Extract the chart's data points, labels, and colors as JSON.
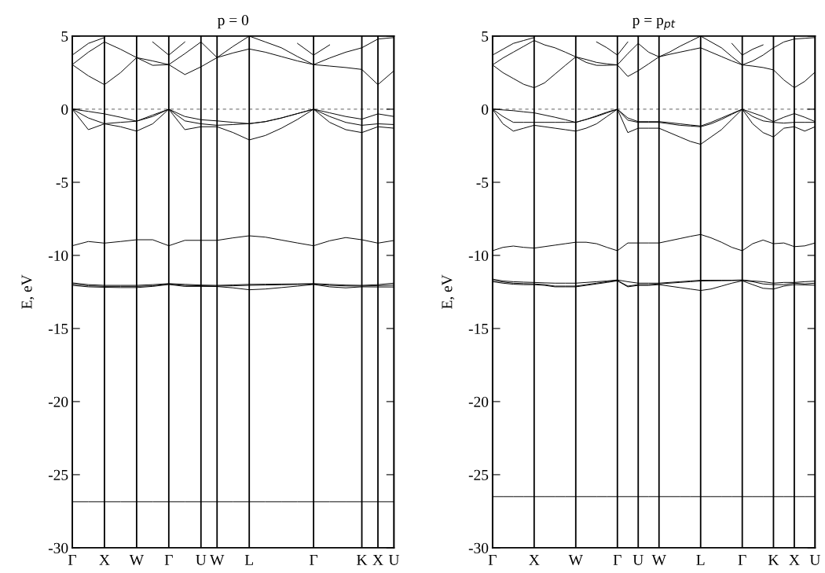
{
  "chart_data": [
    {
      "type": "line",
      "title": "p = 0",
      "ylabel": "E, eV",
      "categories": [
        "Γ",
        null,
        "X",
        null,
        "W",
        null,
        "Γ",
        null,
        "U",
        "W",
        null,
        "L",
        null,
        null,
        null,
        "Γ",
        null,
        null,
        "K",
        "X",
        "U"
      ],
      "ylim": [
        -30,
        5
      ],
      "yticks": [
        -30,
        -25,
        -20,
        -15,
        -10,
        -5,
        0,
        5
      ],
      "grid": "x",
      "ref_lines": [
        {
          "axis": "y",
          "value": 0,
          "color": "#808080",
          "line_style": "dashed"
        }
      ],
      "series": [
        {
          "color": "#000000",
          "values": [
            -26.85,
            -26.85,
            -26.85,
            -26.85,
            -26.85,
            -26.85,
            -26.85,
            -26.85,
            -26.85,
            -26.85,
            -26.85,
            -26.85,
            -26.85,
            -26.85,
            -26.85,
            -26.85,
            -26.85,
            -26.85,
            -26.85,
            -26.85,
            -26.85
          ]
        },
        {
          "color": "#000000",
          "values": [
            -11.88,
            -12.0,
            -12.05,
            -12.05,
            -12.05,
            -12.0,
            -11.93,
            -11.98,
            -12.03,
            -12.05,
            -12.02,
            -11.98,
            -11.97,
            -11.96,
            -11.95,
            -11.93,
            -11.98,
            -12.03,
            -12.05,
            -12.0,
            -11.9
          ]
        },
        {
          "color": "#000000",
          "values": [
            -11.96,
            -12.08,
            -12.12,
            -12.12,
            -12.12,
            -12.08,
            -11.96,
            -12.06,
            -12.08,
            -12.1,
            -12.08,
            -12.05,
            -12.03,
            -12.01,
            -11.99,
            -11.96,
            -12.05,
            -12.09,
            -12.1,
            -12.07,
            -12.03
          ]
        },
        {
          "color": "#000000",
          "values": [
            -12.05,
            -12.15,
            -12.18,
            -12.2,
            -12.2,
            -12.12,
            -11.99,
            -12.12,
            -12.12,
            -12.13,
            -12.22,
            -12.35,
            -12.3,
            -12.2,
            -12.1,
            -11.99,
            -12.15,
            -12.22,
            -12.15,
            -12.16,
            -12.16
          ]
        },
        {
          "color": "#000000",
          "values": [
            -9.34,
            -9.05,
            -9.16,
            -9.05,
            -8.93,
            -8.93,
            -9.34,
            -8.97,
            -8.97,
            -8.97,
            -8.8,
            -8.66,
            -8.75,
            -8.95,
            -9.15,
            -9.34,
            -9.0,
            -8.78,
            -8.93,
            -9.16,
            -8.98
          ]
        },
        {
          "color": "#000000",
          "values": [
            0,
            -0.15,
            -0.32,
            -0.55,
            -0.82,
            -0.4,
            0,
            -0.5,
            -0.72,
            -0.8,
            -0.9,
            -0.99,
            -0.85,
            -0.6,
            -0.3,
            0,
            -0.25,
            -0.5,
            -0.68,
            -0.32,
            -0.5
          ]
        },
        {
          "color": "#000000",
          "values": [
            0,
            -0.6,
            -0.99,
            -0.9,
            -0.82,
            -0.5,
            0,
            -0.8,
            -1.0,
            -1.1,
            -1.05,
            -0.99,
            -0.85,
            -0.6,
            -0.3,
            0,
            -0.5,
            -0.9,
            -1.1,
            -1.0,
            -1.05
          ]
        },
        {
          "color": "#000000",
          "values": [
            0,
            -1.4,
            -1.0,
            -1.2,
            -1.5,
            -1.0,
            0,
            -1.4,
            -1.2,
            -1.2,
            -1.6,
            -2.1,
            -1.8,
            -1.3,
            -0.7,
            0,
            -0.9,
            -1.4,
            -1.6,
            -1.2,
            -1.3
          ]
        },
        {
          "color": "#000000",
          "values": [
            3.05,
            2.28,
            1.68,
            2.5,
            3.53,
            3.0,
            3.05,
            2.37,
            2.9,
            3.53,
            3.85,
            4.12,
            3.9,
            3.6,
            3.3,
            3.05,
            2.95,
            2.85,
            2.72,
            1.68,
            2.63
          ]
        },
        {
          "color": "#000000",
          "values": [
            3.05,
            3.9,
            4.6,
            4.1,
            3.53,
            3.3,
            3.05,
            3.8,
            4.6,
            3.53,
            4.3,
            5.0,
            4.6,
            4.2,
            3.6,
            3.05,
            3.5,
            3.9,
            4.2,
            4.8,
            4.9
          ]
        },
        {
          "color": "#000000",
          "values": [
            3.7,
            4.5,
            4.9,
            null,
            null,
            4.6,
            3.7,
            4.6,
            null,
            null,
            null,
            null,
            null,
            null,
            4.5,
            3.7,
            4.4,
            null,
            null,
            null,
            null
          ]
        }
      ]
    },
    {
      "type": "line",
      "title": "p = p$_{pt}$",
      "ylabel": "E, eV",
      "categories": [
        "Γ",
        null,
        null,
        null,
        "X",
        null,
        null,
        null,
        "W",
        null,
        null,
        null,
        "Γ",
        null,
        "U",
        null,
        "W",
        null,
        null,
        null,
        "L",
        null,
        null,
        null,
        "Γ",
        null,
        null,
        "K",
        null,
        "X",
        null,
        "U"
      ],
      "ylim": [
        -30,
        5
      ],
      "yticks": [
        -30,
        -25,
        -20,
        -15,
        -10,
        -5,
        0,
        5
      ],
      "grid": "x",
      "ref_lines": [
        {
          "axis": "y",
          "value": 0,
          "color": "#808080",
          "line_style": "dashed"
        }
      ],
      "series": [
        {
          "color": "#000000",
          "values": [
            -26.5,
            -26.5,
            -26.5,
            -26.5,
            -26.5,
            -26.5,
            -26.5,
            -26.5,
            -26.5,
            -26.5,
            -26.5,
            -26.5,
            -26.5,
            -26.5,
            -26.5,
            -26.5,
            -26.5,
            -26.5,
            -26.5,
            -26.5,
            -26.5,
            -26.5,
            -26.5,
            -26.5,
            -26.5,
            -26.5,
            -26.5,
            -26.5,
            -26.5,
            -26.5,
            -26.5,
            -26.5
          ]
        },
        {
          "color": "#000000",
          "values": [
            -11.62,
            -11.75,
            -11.8,
            -11.83,
            -11.85,
            -11.88,
            -11.9,
            -11.9,
            -11.9,
            -11.85,
            -11.8,
            -11.75,
            -11.68,
            -11.8,
            -11.9,
            -11.9,
            -11.9,
            -11.85,
            -11.8,
            -11.75,
            -11.7,
            -11.7,
            -11.7,
            -11.7,
            -11.68,
            -11.75,
            -11.8,
            -11.9,
            -11.85,
            -11.85,
            -11.8,
            -11.76
          ]
        },
        {
          "color": "#000000",
          "values": [
            -11.71,
            -11.82,
            -11.9,
            -11.93,
            -11.95,
            -12.0,
            -12.1,
            -12.1,
            -12.1,
            -12.0,
            -11.9,
            -11.8,
            -11.71,
            -12.1,
            -12.0,
            -12.0,
            -11.95,
            -11.9,
            -11.85,
            -11.8,
            -11.75,
            -11.74,
            -11.73,
            -11.72,
            -11.71,
            -11.8,
            -11.95,
            -12.0,
            -12.0,
            -11.9,
            -11.95,
            -11.9
          ]
        },
        {
          "color": "#000000",
          "values": [
            -11.8,
            -11.9,
            -11.97,
            -12.0,
            -12.0,
            -12.05,
            -12.15,
            -12.15,
            -12.15,
            -12.05,
            -11.95,
            -11.85,
            -11.74,
            -12.15,
            -12.05,
            -12.05,
            -12.0,
            -12.1,
            -12.2,
            -12.3,
            -12.4,
            -12.3,
            -12.1,
            -11.9,
            -11.74,
            -12.0,
            -12.25,
            -12.3,
            -12.1,
            -12.0,
            -12.02,
            -12.04
          ]
        },
        {
          "color": "#000000",
          "values": [
            -9.68,
            -9.45,
            -9.36,
            -9.45,
            -9.5,
            -9.4,
            -9.3,
            -9.2,
            -9.1,
            -9.1,
            -9.2,
            -9.45,
            -9.68,
            -9.15,
            -9.15,
            -9.15,
            -9.15,
            -9.0,
            -8.85,
            -8.7,
            -8.57,
            -8.8,
            -9.1,
            -9.45,
            -9.68,
            -9.2,
            -8.95,
            -9.2,
            -9.15,
            -9.4,
            -9.35,
            -9.15
          ]
        },
        {
          "color": "#000000",
          "values": [
            0,
            -0.05,
            -0.1,
            -0.18,
            -0.25,
            -0.4,
            -0.55,
            -0.72,
            -0.9,
            -0.7,
            -0.45,
            -0.2,
            0,
            -0.6,
            -0.85,
            -0.85,
            -0.85,
            -0.92,
            -1.0,
            -1.08,
            -1.15,
            -0.9,
            -0.6,
            -0.3,
            0,
            -0.25,
            -0.5,
            -0.85,
            -0.55,
            -0.3,
            -0.55,
            -0.85
          ]
        },
        {
          "color": "#000000",
          "values": [
            0,
            -0.5,
            -0.9,
            -0.9,
            -0.9,
            -0.9,
            -0.9,
            -0.9,
            -0.9,
            -0.7,
            -0.5,
            -0.25,
            0,
            -0.75,
            -0.9,
            -0.9,
            -0.9,
            -1.0,
            -1.1,
            -1.15,
            -1.2,
            -1.0,
            -0.7,
            -0.35,
            0,
            -0.5,
            -0.8,
            -0.9,
            -0.95,
            -0.9,
            -0.9,
            -0.9
          ]
        },
        {
          "color": "#000000",
          "values": [
            0,
            -1.0,
            -1.5,
            -1.3,
            -1.1,
            -1.2,
            -1.3,
            -1.4,
            -1.5,
            -1.3,
            -1.0,
            -0.5,
            0,
            -1.6,
            -1.3,
            -1.3,
            -1.3,
            -1.6,
            -1.9,
            -2.2,
            -2.4,
            -1.9,
            -1.4,
            -0.7,
            0,
            -1.0,
            -1.6,
            -1.9,
            -1.3,
            -1.2,
            -1.5,
            -1.2
          ]
        },
        {
          "color": "#000000",
          "values": [
            3.03,
            2.5,
            2.1,
            1.7,
            1.47,
            1.8,
            2.4,
            3.0,
            3.58,
            3.2,
            3.0,
            3.0,
            3.03,
            2.24,
            2.63,
            3.1,
            3.58,
            3.75,
            3.9,
            4.05,
            4.2,
            3.9,
            3.6,
            3.3,
            3.03,
            2.95,
            2.85,
            2.69,
            2.0,
            1.47,
            1.9,
            2.54
          ]
        },
        {
          "color": "#000000",
          "values": [
            3.03,
            3.5,
            3.9,
            4.3,
            4.7,
            4.4,
            4.2,
            3.9,
            3.58,
            3.4,
            3.2,
            3.1,
            3.03,
            3.8,
            4.5,
            3.9,
            3.58,
            3.9,
            4.3,
            4.65,
            5.0,
            4.6,
            4.2,
            3.6,
            3.03,
            3.3,
            3.7,
            4.2,
            4.6,
            4.8,
            4.85,
            4.9
          ]
        },
        {
          "color": "#000000",
          "values": [
            3.7,
            4.1,
            4.5,
            4.7,
            4.9,
            null,
            null,
            null,
            null,
            null,
            4.6,
            4.2,
            3.7,
            4.6,
            null,
            null,
            null,
            null,
            null,
            null,
            null,
            null,
            null,
            4.5,
            3.7,
            4.1,
            4.4,
            null,
            null,
            null,
            null,
            null
          ]
        }
      ]
    }
  ]
}
